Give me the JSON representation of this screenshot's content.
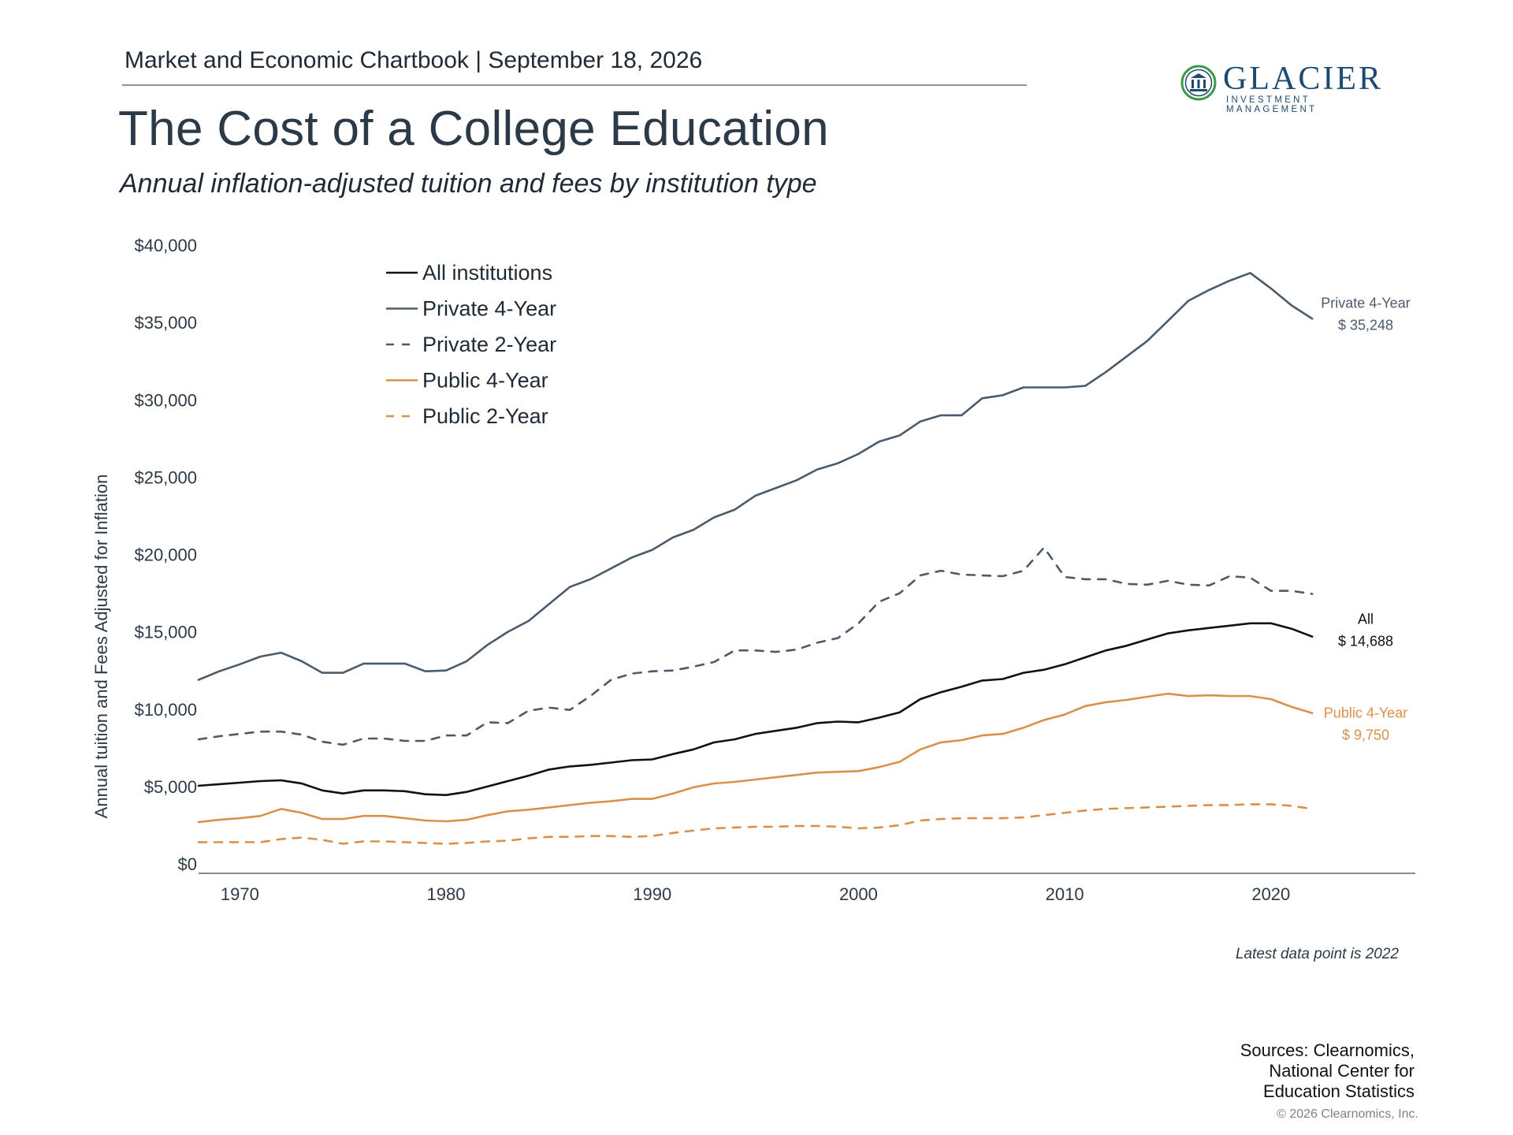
{
  "header": {
    "line": "Market and Economic Chartbook | September 18, 2026",
    "title": "The Cost of a College Education",
    "subtitle": "Annual inflation-adjusted tuition and fees by institution type"
  },
  "logo": {
    "name": "GLACIER",
    "tagline": "INVESTMENT MANAGEMENT",
    "icon": "building-columns-icon",
    "color": "#1d4a70",
    "accent": "#3a9a4a"
  },
  "footer": {
    "note": "Latest data point is 2022",
    "sources": [
      "Sources: Clearnomics,",
      "National Center for",
      "Education Statistics"
    ],
    "copyright": "© 2026 Clearnomics, Inc."
  },
  "chart_data": {
    "type": "line",
    "ylabel": "Annual tuition and Fees Adjusted for Inflation",
    "xlim": [
      1968,
      2027
    ],
    "ylim": [
      0,
      40000
    ],
    "yticks": [
      0,
      5000,
      10000,
      15000,
      20000,
      25000,
      30000,
      35000,
      40000
    ],
    "yticklabels": [
      "$0",
      "$5,000",
      "$10,000",
      "$15,000",
      "$20,000",
      "$25,000",
      "$30,000",
      "$35,000",
      "$40,000"
    ],
    "xticks": [
      1970,
      1980,
      1990,
      2000,
      2010,
      2020
    ],
    "xticklabels": [
      "1970",
      "1980",
      "1990",
      "2000",
      "2010",
      "2020"
    ],
    "grid": false,
    "legend_position": "top-left",
    "x": [
      1968,
      1969,
      1970,
      1971,
      1972,
      1973,
      1974,
      1975,
      1976,
      1977,
      1978,
      1979,
      1980,
      1981,
      1982,
      1983,
      1984,
      1985,
      1986,
      1987,
      1988,
      1989,
      1990,
      1991,
      1992,
      1993,
      1994,
      1995,
      1996,
      1997,
      1998,
      1999,
      2000,
      2001,
      2002,
      2003,
      2004,
      2005,
      2006,
      2007,
      2008,
      2009,
      2010,
      2011,
      2012,
      2013,
      2014,
      2015,
      2016,
      2017,
      2018,
      2019,
      2020,
      2021,
      2022
    ],
    "series": [
      {
        "name": "All institutions",
        "color": "#111111",
        "dash": false,
        "values": [
          5050,
          5150,
          5250,
          5350,
          5400,
          5200,
          4750,
          4550,
          4750,
          4750,
          4700,
          4500,
          4450,
          4650,
          5000,
          5350,
          5700,
          6100,
          6300,
          6400,
          6550,
          6700,
          6750,
          7100,
          7400,
          7850,
          8050,
          8400,
          8600,
          8800,
          9100,
          9200,
          9150,
          9450,
          9800,
          10650,
          11100,
          11450,
          11850,
          11950,
          12350,
          12550,
          12900,
          13350,
          13800,
          14100,
          14500,
          14900,
          15100,
          15250,
          15400,
          15550,
          15550,
          15200,
          14688
        ]
      },
      {
        "name": "Private 4-Year",
        "color": "#4b5b6b",
        "dash": false,
        "values": [
          11900,
          12450,
          12900,
          13400,
          13650,
          13100,
          12350,
          12350,
          12950,
          12950,
          12950,
          12450,
          12500,
          13100,
          14150,
          15000,
          15700,
          16800,
          17900,
          18400,
          19100,
          19800,
          20300,
          21100,
          21600,
          22400,
          22900,
          23800,
          24300,
          24800,
          25500,
          25900,
          26500,
          27300,
          27700,
          28600,
          29000,
          29000,
          30100,
          30300,
          30800,
          30800,
          30800,
          30900,
          31800,
          32800,
          33800,
          35100,
          36400,
          37100,
          37700,
          38200,
          37200,
          36100,
          35248
        ]
      },
      {
        "name": "Private 2-Year",
        "color": "#4b5b6b",
        "dash": true,
        "values": [
          8050,
          8250,
          8400,
          8550,
          8550,
          8350,
          7900,
          7700,
          8100,
          8100,
          7950,
          7950,
          8300,
          8300,
          9150,
          9100,
          9900,
          10100,
          9950,
          10850,
          11900,
          12300,
          12450,
          12500,
          12750,
          13050,
          13800,
          13800,
          13700,
          13850,
          14300,
          14600,
          15550,
          16950,
          17500,
          18650,
          18950,
          18700,
          18650,
          18600,
          18950,
          20450,
          18550,
          18400,
          18400,
          18100,
          18050,
          18300,
          18050,
          18000,
          18600,
          18500,
          17650,
          17650,
          17450
        ]
      },
      {
        "name": "Public 4-Year",
        "color": "#d9914a",
        "dash": false,
        "values": [
          2700,
          2850,
          2950,
          3100,
          3550,
          3300,
          2900,
          2900,
          3100,
          3100,
          2950,
          2800,
          2750,
          2850,
          3150,
          3400,
          3500,
          3650,
          3800,
          3950,
          4050,
          4200,
          4200,
          4550,
          4950,
          5200,
          5300,
          5450,
          5600,
          5750,
          5900,
          5950,
          6000,
          6250,
          6600,
          7400,
          7850,
          8000,
          8300,
          8400,
          8800,
          9300,
          9650,
          10200,
          10450,
          10600,
          10800,
          11000,
          10850,
          10900,
          10850,
          10850,
          10650,
          10150,
          9750
        ]
      },
      {
        "name": "Public 2-Year",
        "color": "#d9914a",
        "dash": true,
        "values": [
          1400,
          1400,
          1400,
          1400,
          1600,
          1700,
          1550,
          1300,
          1450,
          1450,
          1400,
          1350,
          1300,
          1350,
          1450,
          1500,
          1650,
          1750,
          1750,
          1800,
          1800,
          1750,
          1800,
          2000,
          2150,
          2300,
          2350,
          2400,
          2400,
          2450,
          2450,
          2400,
          2300,
          2350,
          2500,
          2800,
          2900,
          2950,
          2950,
          2950,
          3000,
          3150,
          3300,
          3450,
          3550,
          3600,
          3650,
          3700,
          3750,
          3800,
          3800,
          3850,
          3850,
          3750,
          3550
        ]
      }
    ],
    "end_labels": [
      {
        "series": "Private 4-Year",
        "name": "Private 4-Year",
        "value": "$ 35,248",
        "color": "#4b5b6b"
      },
      {
        "series": "All institutions",
        "name": "All",
        "value": "$ 14,688",
        "color": "#111111"
      },
      {
        "series": "Public 4-Year",
        "name": "Public 4-Year",
        "value": "$ 9,750",
        "color": "#d9914a"
      }
    ]
  }
}
